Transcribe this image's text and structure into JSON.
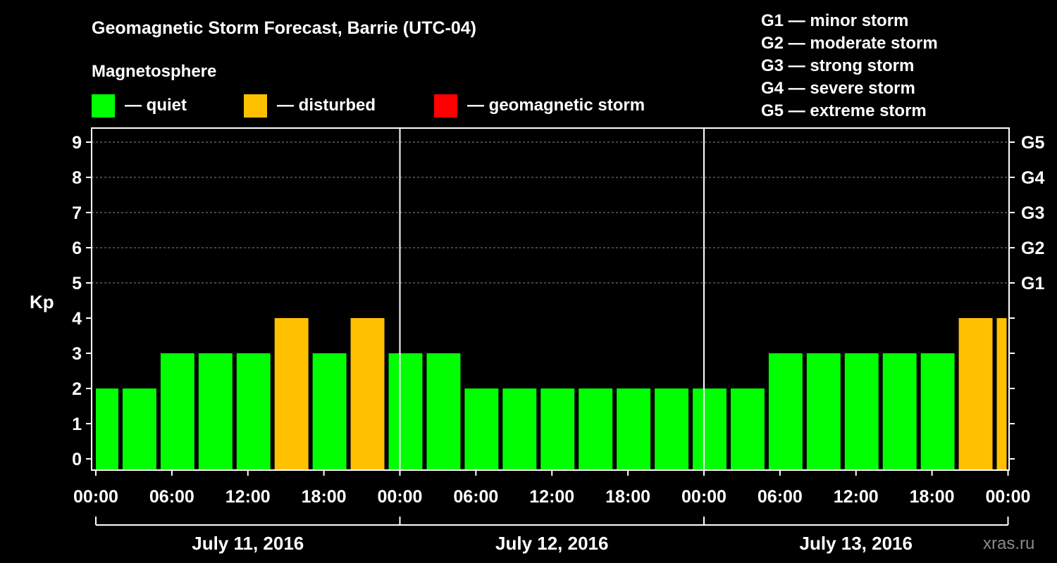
{
  "chart_data": {
    "type": "bar",
    "title": "Geomagnetic Storm Forecast, Barrie (UTC-04)",
    "legend_title": "Magnetosphere",
    "legend": [
      {
        "label": "— quiet",
        "color": "#00ff00"
      },
      {
        "label": "— disturbed",
        "color": "#ffc000"
      },
      {
        "label": "— geomagnetic storm",
        "color": "#ff0000"
      }
    ],
    "storm_scale": [
      "G1 — minor storm",
      "G2 — moderate storm",
      "G3 — strong storm",
      "G4 — severe storm",
      "G5 — extreme storm"
    ],
    "ylabel": "Kp",
    "ylim": [
      0,
      9
    ],
    "yticks": [
      "0",
      "1",
      "2",
      "3",
      "4",
      "5",
      "6",
      "7",
      "8",
      "9"
    ],
    "right_ticks": [
      {
        "kp": 5,
        "label": "G1"
      },
      {
        "kp": 6,
        "label": "G2"
      },
      {
        "kp": 7,
        "label": "G3"
      },
      {
        "kp": 8,
        "label": "G4"
      },
      {
        "kp": 9,
        "label": "G5"
      }
    ],
    "xticks": [
      "00:00",
      "06:00",
      "12:00",
      "18:00",
      "00:00",
      "06:00",
      "12:00",
      "18:00",
      "00:00",
      "06:00",
      "12:00",
      "18:00",
      "00:00"
    ],
    "days": [
      "July 11, 2016",
      "July 12, 2016",
      "July 13, 2016"
    ],
    "bar_start_hours": [
      0,
      2,
      5,
      8,
      11,
      14,
      17,
      20,
      23,
      26,
      29,
      32,
      35,
      38,
      41,
      44,
      47,
      50,
      53,
      56,
      59,
      62,
      65,
      68,
      71
    ],
    "bar_end_hours": [
      2,
      5,
      8,
      11,
      14,
      17,
      20,
      23,
      26,
      29,
      32,
      35,
      38,
      41,
      44,
      47,
      50,
      53,
      56,
      59,
      62,
      65,
      68,
      71,
      72
    ],
    "values": [
      2,
      2,
      3,
      3,
      3,
      4,
      3,
      4,
      3,
      3,
      2,
      2,
      2,
      2,
      2,
      2,
      2,
      2,
      3,
      3,
      3,
      3,
      3,
      4,
      4
    ],
    "watermark": "xras.ru"
  }
}
